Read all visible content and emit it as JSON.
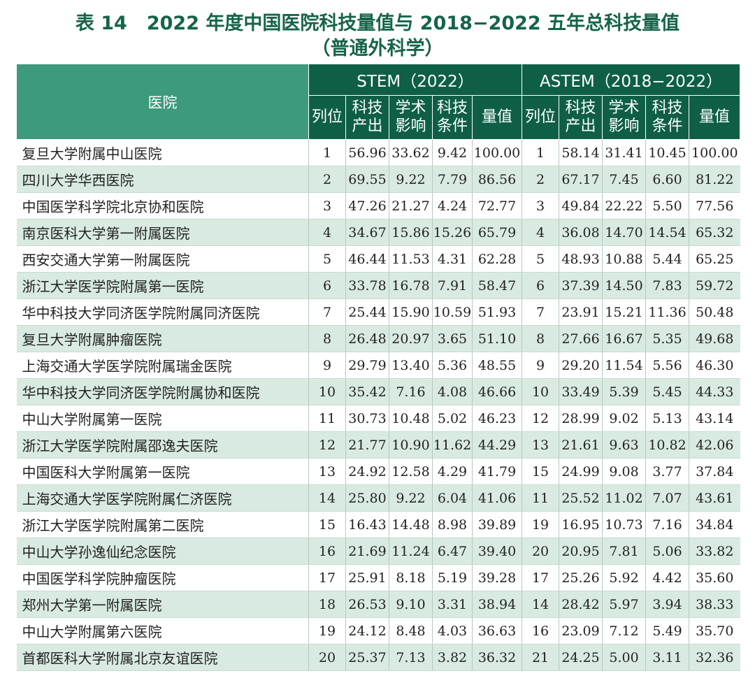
{
  "title": {
    "label": "表 14",
    "main": "2022 年度中国医院科技量值与 2018−2022 五年总科技量值",
    "sub": "（普通外科学）"
  },
  "table": {
    "hospital_header": "医院",
    "group1_header": "STEM（2022）",
    "group2_header": "ASTEM（2018−2022）",
    "sub_headers": [
      "列位",
      "科技产出",
      "学术影响",
      "科技条件",
      "量值"
    ],
    "rows": [
      {
        "name": "复旦大学附属中山医院",
        "s": [
          "1",
          "56.96",
          "33.62",
          "9.42",
          "100.00"
        ],
        "a": [
          "1",
          "58.14",
          "31.41",
          "10.45",
          "100.00"
        ]
      },
      {
        "name": "四川大学华西医院",
        "s": [
          "2",
          "69.55",
          "9.22",
          "7.79",
          "86.56"
        ],
        "a": [
          "2",
          "67.17",
          "7.45",
          "6.60",
          "81.22"
        ]
      },
      {
        "name": "中国医学科学院北京协和医院",
        "s": [
          "3",
          "47.26",
          "21.27",
          "4.24",
          "72.77"
        ],
        "a": [
          "3",
          "49.84",
          "22.22",
          "5.50",
          "77.56"
        ]
      },
      {
        "name": "南京医科大学第一附属医院",
        "s": [
          "4",
          "34.67",
          "15.86",
          "15.26",
          "65.79"
        ],
        "a": [
          "4",
          "36.08",
          "14.70",
          "14.54",
          "65.32"
        ]
      },
      {
        "name": "西安交通大学第一附属医院",
        "s": [
          "5",
          "46.44",
          "11.53",
          "4.31",
          "62.28"
        ],
        "a": [
          "5",
          "48.93",
          "10.88",
          "5.44",
          "65.25"
        ]
      },
      {
        "name": "浙江大学医学院附属第一医院",
        "s": [
          "6",
          "33.78",
          "16.78",
          "7.91",
          "58.47"
        ],
        "a": [
          "6",
          "37.39",
          "14.50",
          "7.83",
          "59.72"
        ]
      },
      {
        "name": "华中科技大学同济医学院附属同济医院",
        "s": [
          "7",
          "25.44",
          "15.90",
          "10.59",
          "51.93"
        ],
        "a": [
          "7",
          "23.91",
          "15.21",
          "11.36",
          "50.48"
        ]
      },
      {
        "name": "复旦大学附属肿瘤医院",
        "s": [
          "8",
          "26.48",
          "20.97",
          "3.65",
          "51.10"
        ],
        "a": [
          "8",
          "27.66",
          "16.67",
          "5.35",
          "49.68"
        ]
      },
      {
        "name": "上海交通大学医学院附属瑞金医院",
        "s": [
          "9",
          "29.79",
          "13.40",
          "5.36",
          "48.55"
        ],
        "a": [
          "9",
          "29.20",
          "11.54",
          "5.56",
          "46.30"
        ]
      },
      {
        "name": "华中科技大学同济医学院附属协和医院",
        "s": [
          "10",
          "35.42",
          "7.16",
          "4.08",
          "46.66"
        ],
        "a": [
          "10",
          "33.49",
          "5.39",
          "5.45",
          "44.33"
        ]
      },
      {
        "name": "中山大学附属第一医院",
        "s": [
          "11",
          "30.73",
          "10.48",
          "5.02",
          "46.23"
        ],
        "a": [
          "12",
          "28.99",
          "9.02",
          "5.13",
          "43.14"
        ]
      },
      {
        "name": "浙江大学医学院附属邵逸夫医院",
        "s": [
          "12",
          "21.77",
          "10.90",
          "11.62",
          "44.29"
        ],
        "a": [
          "13",
          "21.61",
          "9.63",
          "10.82",
          "42.06"
        ]
      },
      {
        "name": "中国医科大学附属第一医院",
        "s": [
          "13",
          "24.92",
          "12.58",
          "4.29",
          "41.79"
        ],
        "a": [
          "15",
          "24.99",
          "9.08",
          "3.77",
          "37.84"
        ]
      },
      {
        "name": "上海交通大学医学院附属仁济医院",
        "s": [
          "14",
          "25.80",
          "9.22",
          "6.04",
          "41.06"
        ],
        "a": [
          "11",
          "25.52",
          "11.02",
          "7.07",
          "43.61"
        ]
      },
      {
        "name": "浙江大学医学院附属第二医院",
        "s": [
          "15",
          "16.43",
          "14.48",
          "8.98",
          "39.89"
        ],
        "a": [
          "19",
          "16.95",
          "10.73",
          "7.16",
          "34.84"
        ]
      },
      {
        "name": "中山大学孙逸仙纪念医院",
        "s": [
          "16",
          "21.69",
          "11.24",
          "6.47",
          "39.40"
        ],
        "a": [
          "20",
          "20.95",
          "7.81",
          "5.06",
          "33.82"
        ]
      },
      {
        "name": "中国医学科学院肿瘤医院",
        "s": [
          "17",
          "25.91",
          "8.18",
          "5.19",
          "39.28"
        ],
        "a": [
          "17",
          "25.26",
          "5.92",
          "4.42",
          "35.60"
        ]
      },
      {
        "name": "郑州大学第一附属医院",
        "s": [
          "18",
          "26.53",
          "9.10",
          "3.31",
          "38.94"
        ],
        "a": [
          "14",
          "28.42",
          "5.97",
          "3.94",
          "38.33"
        ]
      },
      {
        "name": "中山大学附属第六医院",
        "s": [
          "19",
          "24.12",
          "8.48",
          "4.03",
          "36.63"
        ],
        "a": [
          "16",
          "23.09",
          "7.12",
          "5.49",
          "35.70"
        ]
      },
      {
        "name": "首都医科大学附属北京友谊医院",
        "s": [
          "20",
          "25.37",
          "7.13",
          "3.82",
          "36.32"
        ],
        "a": [
          "21",
          "24.25",
          "5.00",
          "3.11",
          "32.36"
        ]
      }
    ]
  }
}
